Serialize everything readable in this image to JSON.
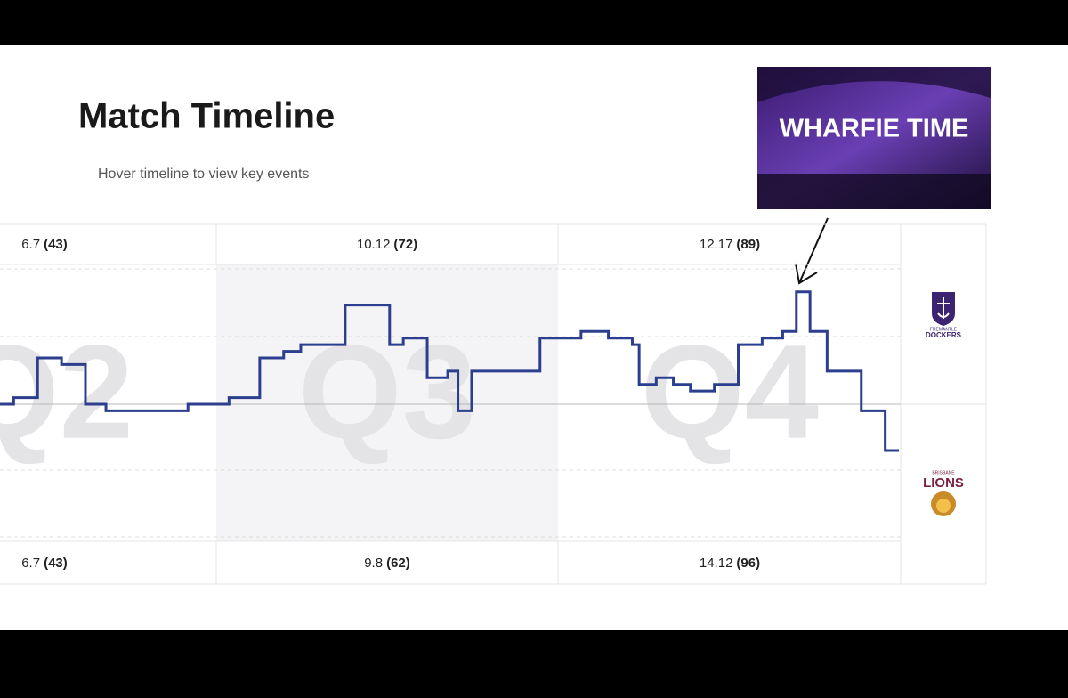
{
  "header": {
    "title": "Match Timeline",
    "subtitle": "Hover timeline to view key events"
  },
  "image": {
    "caption": "WHARFIE TIME"
  },
  "quarters": [
    "Q2",
    "Q3",
    "Q4"
  ],
  "scores": {
    "home": [
      {
        "score": "6.7",
        "total": "(43)"
      },
      {
        "score": "10.12",
        "total": "(72)"
      },
      {
        "score": "12.17",
        "total": "(89)"
      }
    ],
    "away": [
      {
        "score": "6.7",
        "total": "(43)"
      },
      {
        "score": "9.8",
        "total": "(62)"
      },
      {
        "score": "14.12",
        "total": "(96)"
      }
    ]
  },
  "teams": {
    "home": {
      "line1": "FREMANTLE",
      "line2": "DOCKERS"
    },
    "away": {
      "line1": "BRISBANE",
      "line2": "LIONS"
    }
  },
  "chart_data": {
    "type": "step",
    "color": "#2b3f8e",
    "x": [
      1.37,
      1.41,
      1.48,
      1.55,
      1.62,
      1.68,
      1.92,
      2.04,
      2.13,
      2.2,
      2.25,
      2.38,
      2.51,
      2.55,
      2.62,
      2.68,
      2.71,
      2.75,
      2.95,
      3.07,
      3.15,
      3.22,
      3.24,
      3.29,
      3.34,
      3.39,
      3.46,
      3.53,
      3.6,
      3.66,
      3.7,
      3.74,
      3.79,
      3.89,
      3.96,
      4.0
    ],
    "values": [
      0,
      1,
      7,
      6,
      0,
      -1,
      0,
      1,
      7,
      8,
      9,
      15,
      9,
      10,
      4,
      5,
      -1,
      5,
      10,
      11,
      10,
      9,
      3,
      4,
      3,
      2,
      3,
      9,
      10,
      11,
      17,
      11,
      5,
      -1,
      -7,
      -7
    ],
    "xlim": [
      1.37,
      4.0
    ],
    "ylim": [
      -21,
      21
    ]
  }
}
